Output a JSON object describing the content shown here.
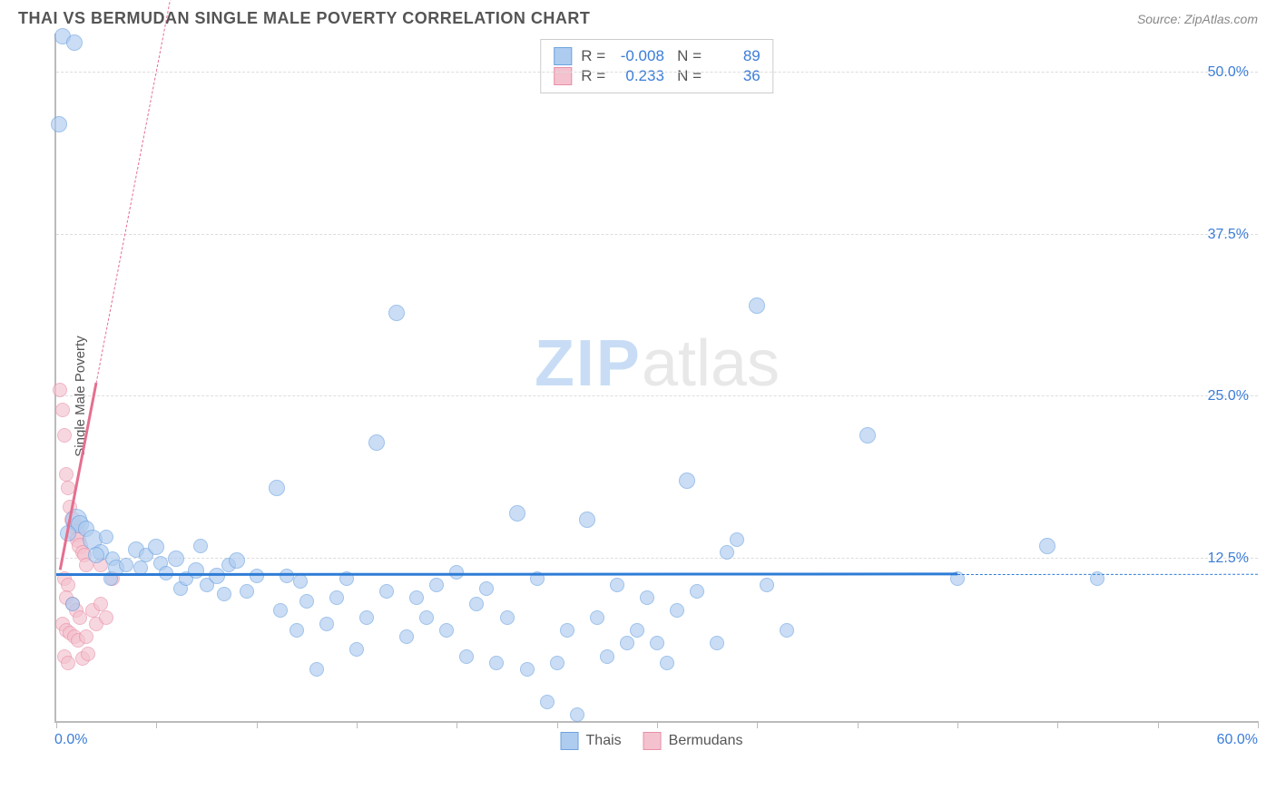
{
  "title": "THAI VS BERMUDAN SINGLE MALE POVERTY CORRELATION CHART",
  "source": "Source: ZipAtlas.com",
  "ylabel": "Single Male Poverty",
  "watermark": {
    "part1": "ZIP",
    "part2": "atlas"
  },
  "chart": {
    "type": "scatter",
    "xlim": [
      0,
      60
    ],
    "ylim": [
      0,
      53
    ],
    "ytick_labels": [
      "12.5%",
      "25.0%",
      "37.5%",
      "50.0%"
    ],
    "ytick_values": [
      12.5,
      25.0,
      37.5,
      50.0
    ],
    "xtick_values": [
      0,
      5,
      10,
      15,
      20,
      25,
      30,
      35,
      40,
      45,
      50,
      55,
      60
    ],
    "xtick_labels": {
      "min": "0.0%",
      "max": "60.0%"
    },
    "grid_color": "#dddddd",
    "axis_color": "#bbbbbb",
    "label_color": "#3b7dd8",
    "background": "#ffffff",
    "series": [
      {
        "name": "Thais",
        "fill": "#aeccf0",
        "stroke": "#6da3e0",
        "opacity": 0.65,
        "radius_range": [
          7,
          14
        ],
        "correlation": {
          "R": "-0.008",
          "N": "89"
        },
        "trend": {
          "slope": 0.001,
          "intercept": 11.2,
          "x0": 0,
          "x1": 60,
          "solid_until": 45,
          "color": "#2e7cd6"
        },
        "points": [
          [
            0.3,
            52.8,
            9
          ],
          [
            0.9,
            52.3,
            9
          ],
          [
            0.15,
            46.0,
            9
          ],
          [
            1.0,
            15.5,
            12
          ],
          [
            1.2,
            15.2,
            10
          ],
          [
            1.5,
            14.8,
            9
          ],
          [
            0.6,
            14.5,
            9
          ],
          [
            0.8,
            9.0,
            8
          ],
          [
            1.8,
            14.0,
            11
          ],
          [
            2.2,
            13.0,
            9
          ],
          [
            2.0,
            12.8,
            9
          ],
          [
            2.5,
            14.2,
            8
          ],
          [
            2.7,
            11.0,
            8
          ],
          [
            2.8,
            12.5,
            8
          ],
          [
            3.0,
            11.8,
            9
          ],
          [
            3.5,
            12.0,
            8
          ],
          [
            4.0,
            13.2,
            9
          ],
          [
            4.2,
            11.8,
            8
          ],
          [
            4.5,
            12.8,
            8
          ],
          [
            5.0,
            13.4,
            9
          ],
          [
            5.2,
            12.2,
            8
          ],
          [
            5.5,
            11.4,
            8
          ],
          [
            6.0,
            12.5,
            9
          ],
          [
            6.2,
            10.2,
            8
          ],
          [
            6.5,
            11.0,
            8
          ],
          [
            7.0,
            11.6,
            9
          ],
          [
            7.2,
            13.5,
            8
          ],
          [
            7.5,
            10.5,
            8
          ],
          [
            8.0,
            11.2,
            9
          ],
          [
            8.4,
            9.8,
            8
          ],
          [
            8.6,
            12.0,
            8
          ],
          [
            9.0,
            12.4,
            9
          ],
          [
            9.5,
            10.0,
            8
          ],
          [
            10.0,
            11.2,
            8
          ],
          [
            11.0,
            18.0,
            9
          ],
          [
            11.2,
            8.5,
            8
          ],
          [
            11.5,
            11.2,
            8
          ],
          [
            12.0,
            7.0,
            8
          ],
          [
            12.2,
            10.8,
            8
          ],
          [
            12.5,
            9.2,
            8
          ],
          [
            13.0,
            4.0,
            8
          ],
          [
            13.5,
            7.5,
            8
          ],
          [
            14.0,
            9.5,
            8
          ],
          [
            14.5,
            11.0,
            8
          ],
          [
            15.0,
            5.5,
            8
          ],
          [
            15.5,
            8.0,
            8
          ],
          [
            16.0,
            21.5,
            9
          ],
          [
            16.5,
            10.0,
            8
          ],
          [
            17.0,
            31.5,
            9
          ],
          [
            17.5,
            6.5,
            8
          ],
          [
            18.0,
            9.5,
            8
          ],
          [
            18.5,
            8.0,
            8
          ],
          [
            19.0,
            10.5,
            8
          ],
          [
            19.5,
            7.0,
            8
          ],
          [
            20.0,
            11.5,
            8
          ],
          [
            20.5,
            5.0,
            8
          ],
          [
            21.0,
            9.0,
            8
          ],
          [
            21.5,
            10.2,
            8
          ],
          [
            22.0,
            4.5,
            8
          ],
          [
            22.5,
            8.0,
            8
          ],
          [
            23.0,
            16.0,
            9
          ],
          [
            23.5,
            4.0,
            8
          ],
          [
            24.0,
            11.0,
            8
          ],
          [
            24.5,
            1.5,
            8
          ],
          [
            25.0,
            4.5,
            8
          ],
          [
            25.5,
            7.0,
            8
          ],
          [
            26.0,
            0.5,
            8
          ],
          [
            26.5,
            15.5,
            9
          ],
          [
            27.0,
            8.0,
            8
          ],
          [
            27.5,
            5.0,
            8
          ],
          [
            28.0,
            10.5,
            8
          ],
          [
            28.5,
            6.0,
            8
          ],
          [
            29.0,
            7.0,
            8
          ],
          [
            29.5,
            9.5,
            8
          ],
          [
            30.0,
            6.0,
            8
          ],
          [
            30.5,
            4.5,
            8
          ],
          [
            31.0,
            8.5,
            8
          ],
          [
            31.5,
            18.5,
            9
          ],
          [
            32.0,
            10.0,
            8
          ],
          [
            33.0,
            6.0,
            8
          ],
          [
            33.5,
            13.0,
            8
          ],
          [
            34.0,
            14.0,
            8
          ],
          [
            35.0,
            32.0,
            9
          ],
          [
            35.5,
            10.5,
            8
          ],
          [
            36.5,
            7.0,
            8
          ],
          [
            40.5,
            22.0,
            9
          ],
          [
            45.0,
            11.0,
            8
          ],
          [
            49.5,
            13.5,
            9
          ],
          [
            52.0,
            11.0,
            8
          ]
        ]
      },
      {
        "name": "Bermudans",
        "fill": "#f4c2cf",
        "stroke": "#e88fa7",
        "opacity": 0.65,
        "radius_range": [
          7,
          11
        ],
        "correlation": {
          "R": "0.233",
          "N": "36"
        },
        "trend": {
          "slope": 8.0,
          "intercept": 10.0,
          "x0": 0.2,
          "x1": 7.0,
          "solid_until": 2.0,
          "color": "#e56f8f"
        },
        "points": [
          [
            0.2,
            25.5,
            8
          ],
          [
            0.3,
            24.0,
            8
          ],
          [
            0.4,
            22.0,
            8
          ],
          [
            0.5,
            19.0,
            8
          ],
          [
            0.6,
            18.0,
            8
          ],
          [
            0.7,
            16.5,
            8
          ],
          [
            0.8,
            15.5,
            9
          ],
          [
            0.9,
            15.0,
            9
          ],
          [
            1.0,
            14.5,
            10
          ],
          [
            1.1,
            14.0,
            9
          ],
          [
            1.2,
            13.5,
            9
          ],
          [
            1.3,
            13.0,
            8
          ],
          [
            1.4,
            12.8,
            8
          ],
          [
            1.5,
            12.0,
            8
          ],
          [
            0.4,
            11.0,
            8
          ],
          [
            0.6,
            10.5,
            8
          ],
          [
            0.5,
            9.5,
            8
          ],
          [
            0.8,
            9.0,
            8
          ],
          [
            1.0,
            8.5,
            8
          ],
          [
            1.2,
            8.0,
            8
          ],
          [
            0.3,
            7.5,
            8
          ],
          [
            0.5,
            7.0,
            8
          ],
          [
            0.7,
            6.8,
            8
          ],
          [
            0.9,
            6.5,
            8
          ],
          [
            1.1,
            6.2,
            8
          ],
          [
            1.5,
            6.5,
            8
          ],
          [
            1.8,
            8.5,
            8
          ],
          [
            2.0,
            7.5,
            8
          ],
          [
            2.2,
            9.0,
            8
          ],
          [
            2.5,
            8.0,
            8
          ],
          [
            0.4,
            5.0,
            8
          ],
          [
            0.6,
            4.5,
            8
          ],
          [
            1.3,
            4.8,
            8
          ],
          [
            1.6,
            5.2,
            8
          ],
          [
            2.2,
            12.0,
            8
          ],
          [
            2.8,
            11.0,
            8
          ]
        ]
      }
    ]
  },
  "legend_labels": {
    "R": "R =",
    "N": "N ="
  }
}
